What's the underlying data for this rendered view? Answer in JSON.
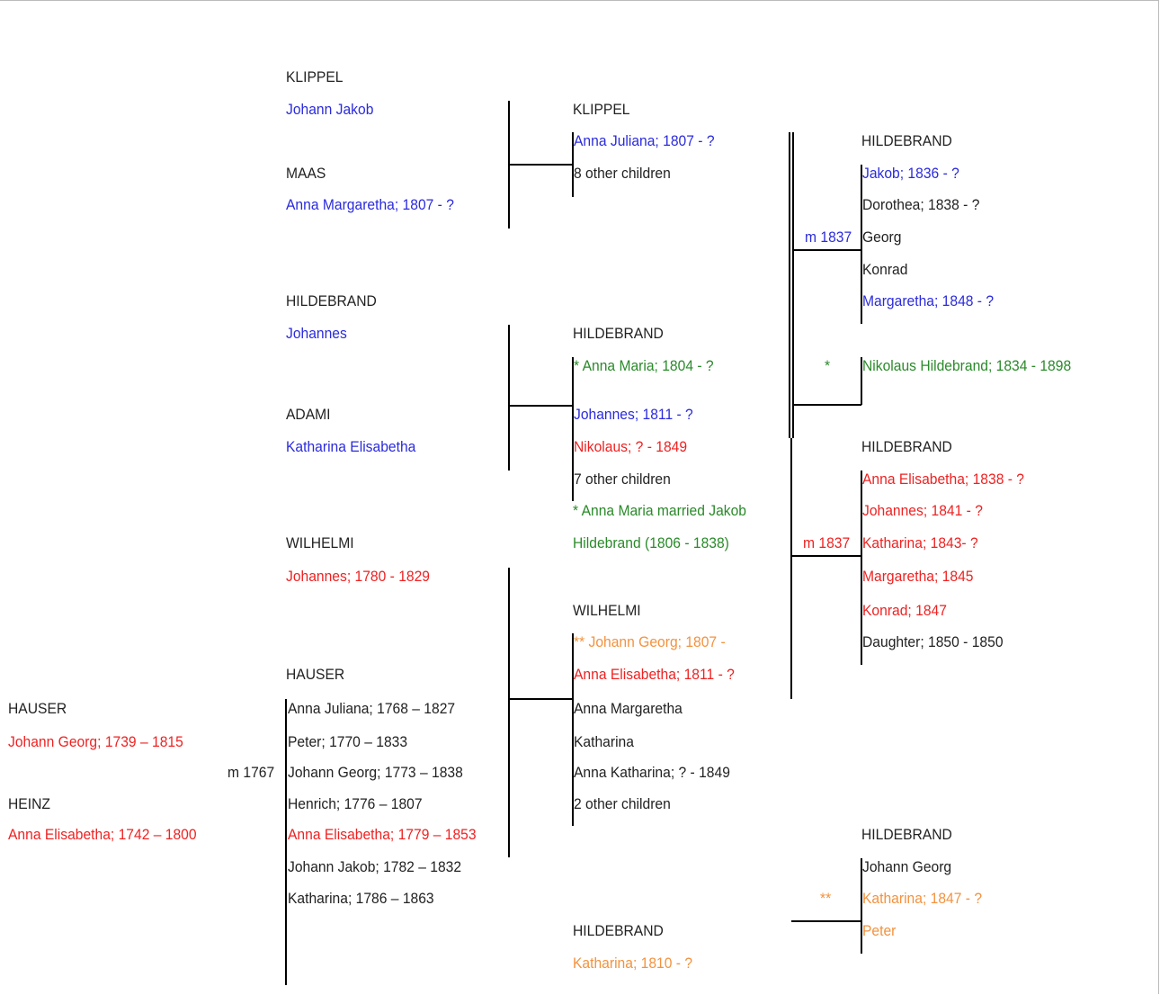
{
  "palette": {
    "black": "#222222",
    "blue": "#2b2bdc",
    "red": "#ee2222",
    "green": "#2a8a2a",
    "orange": "#f3923e"
  },
  "labels": [
    {
      "id": "klippel-top",
      "text": "KLIPPEL",
      "color": "black"
    },
    {
      "id": "johann-jakob-klippel",
      "text": "Johann Jakob",
      "color": "blue"
    },
    {
      "id": "maas",
      "text": "MAAS",
      "color": "black"
    },
    {
      "id": "anna-margaretha-maas",
      "text": "Anna Margaretha; 1807 - ?",
      "color": "blue"
    },
    {
      "id": "hildebrand-gp",
      "text": "HILDEBRAND",
      "color": "black"
    },
    {
      "id": "johannes-hildebrand-gp",
      "text": "Johannes",
      "color": "blue"
    },
    {
      "id": "adami",
      "text": "ADAMI",
      "color": "black"
    },
    {
      "id": "katharina-elisabetha-adami",
      "text": "Katharina Elisabetha",
      "color": "blue"
    },
    {
      "id": "wilhelmi-gp",
      "text": "WILHELMI",
      "color": "black"
    },
    {
      "id": "johannes-wilhelmi",
      "text": "Johannes; 1780 - 1829",
      "color": "red"
    },
    {
      "id": "hauser-children",
      "text": "HAUSER",
      "color": "black"
    },
    {
      "id": "hauser-root",
      "text": "HAUSER",
      "color": "black"
    },
    {
      "id": "johann-georg-root",
      "text": "Johann Georg; 1739 – 1815",
      "color": "red"
    },
    {
      "id": "heinz",
      "text": "HEINZ",
      "color": "black"
    },
    {
      "id": "anna-elisabetha-root",
      "text": "Anna Elisabetha; 1742 – 1800",
      "color": "red"
    },
    {
      "id": "m-1767",
      "text": "m 1767",
      "color": "black"
    },
    {
      "id": "hauser-c1",
      "text": "Anna Juliana; 1768 – 1827",
      "color": "black"
    },
    {
      "id": "hauser-c2",
      "text": "Peter; 1770 – 1833",
      "color": "black"
    },
    {
      "id": "hauser-c3",
      "text": "Johann Georg; 1773 – 1838",
      "color": "black"
    },
    {
      "id": "hauser-c4",
      "text": "Henrich; 1776 – 1807",
      "color": "black"
    },
    {
      "id": "hauser-c5",
      "text": "Anna Elisabetha; 1779 – 1853",
      "color": "red"
    },
    {
      "id": "hauser-c6",
      "text": "Johann Jakob; 1782 – 1832",
      "color": "black"
    },
    {
      "id": "hauser-c7",
      "text": "Katharina; 1786 – 1863",
      "color": "black"
    },
    {
      "id": "klippel-mid",
      "text": "KLIPPEL",
      "color": "black"
    },
    {
      "id": "anna-juliana-klippel",
      "text": "Anna Juliana; 1807 - ?",
      "color": "blue"
    },
    {
      "id": "klippel-other",
      "text": "8 other children",
      "color": "black"
    },
    {
      "id": "hildebrand-mid",
      "text": "HILDEBRAND",
      "color": "black"
    },
    {
      "id": "anna-maria",
      "text": "* Anna Maria; 1804 - ?",
      "color": "green"
    },
    {
      "id": "johannes-1811",
      "text": "Johannes; 1811 - ?",
      "color": "blue"
    },
    {
      "id": "nikolaus-1849",
      "text": "Nikolaus; ? - 1849",
      "color": "red"
    },
    {
      "id": "hildebrand-other",
      "text": "7 other children",
      "color": "black"
    },
    {
      "id": "note-1",
      "text": "* Anna Maria married Jakob",
      "color": "green"
    },
    {
      "id": "note-2",
      "text": "Hildebrand (1806 - 1838)",
      "color": "green"
    },
    {
      "id": "wilhelmi-mid",
      "text": "WILHELMI",
      "color": "black"
    },
    {
      "id": "johann-georg-1807",
      "text": "** Johann Georg; 1807 -",
      "color": "orange"
    },
    {
      "id": "anna-elisabetha-1811",
      "text": "Anna Elisabetha; 1811 - ?",
      "color": "red"
    },
    {
      "id": "anna-margaretha-w",
      "text": "Anna Margaretha",
      "color": "black"
    },
    {
      "id": "katharina-w",
      "text": "Katharina",
      "color": "black"
    },
    {
      "id": "anna-katharina",
      "text": "Anna Katharina; ? - 1849",
      "color": "black"
    },
    {
      "id": "wilhelmi-other",
      "text": "2 other children",
      "color": "black"
    },
    {
      "id": "hildebrand-bottom",
      "text": "HILDEBRAND",
      "color": "black"
    },
    {
      "id": "katharina-1810",
      "text": "Katharina; 1810 - ?",
      "color": "orange"
    },
    {
      "id": "hildebrand-r1",
      "text": "HILDEBRAND",
      "color": "black"
    },
    {
      "id": "jakob-1836",
      "text": "Jakob; 1836 - ?",
      "color": "blue"
    },
    {
      "id": "dorothea",
      "text": "Dorothea; 1838 - ?",
      "color": "black"
    },
    {
      "id": "m-1837-a",
      "text": "m 1837",
      "color": "blue"
    },
    {
      "id": "georg",
      "text": "Georg",
      "color": "black"
    },
    {
      "id": "konrad",
      "text": "Konrad",
      "color": "black"
    },
    {
      "id": "margaretha-1848",
      "text": "Margaretha; 1848 - ?",
      "color": "blue"
    },
    {
      "id": "star-1",
      "text": "*",
      "color": "green"
    },
    {
      "id": "nikolaus-hildebrand",
      "text": "Nikolaus Hildebrand; 1834 - 1898",
      "color": "green"
    },
    {
      "id": "hildebrand-r2",
      "text": "HILDEBRAND",
      "color": "black"
    },
    {
      "id": "anna-elisabetha-1838",
      "text": "Anna Elisabetha; 1838 - ?",
      "color": "red"
    },
    {
      "id": "johannes-1841",
      "text": "Johannes; 1841 - ?",
      "color": "red"
    },
    {
      "id": "m-1837-b",
      "text": "m 1837",
      "color": "red"
    },
    {
      "id": "katharina-1843",
      "text": "Katharina; 1843- ?",
      "color": "red"
    },
    {
      "id": "margaretha-1845",
      "text": "Margaretha; 1845",
      "color": "red"
    },
    {
      "id": "konrad-1847",
      "text": "Konrad; 1847",
      "color": "red"
    },
    {
      "id": "daughter-1850",
      "text": "Daughter; 1850 - 1850",
      "color": "black"
    },
    {
      "id": "hildebrand-r3",
      "text": "HILDEBRAND",
      "color": "black"
    },
    {
      "id": "johann-georg-r3",
      "text": "Johann Georg",
      "color": "black"
    },
    {
      "id": "star-2",
      "text": "**",
      "color": "orange"
    },
    {
      "id": "katharina-1847",
      "text": "Katharina; 1847 - ?",
      "color": "orange"
    },
    {
      "id": "peter-r3",
      "text": "Peter",
      "color": "orange"
    }
  ]
}
